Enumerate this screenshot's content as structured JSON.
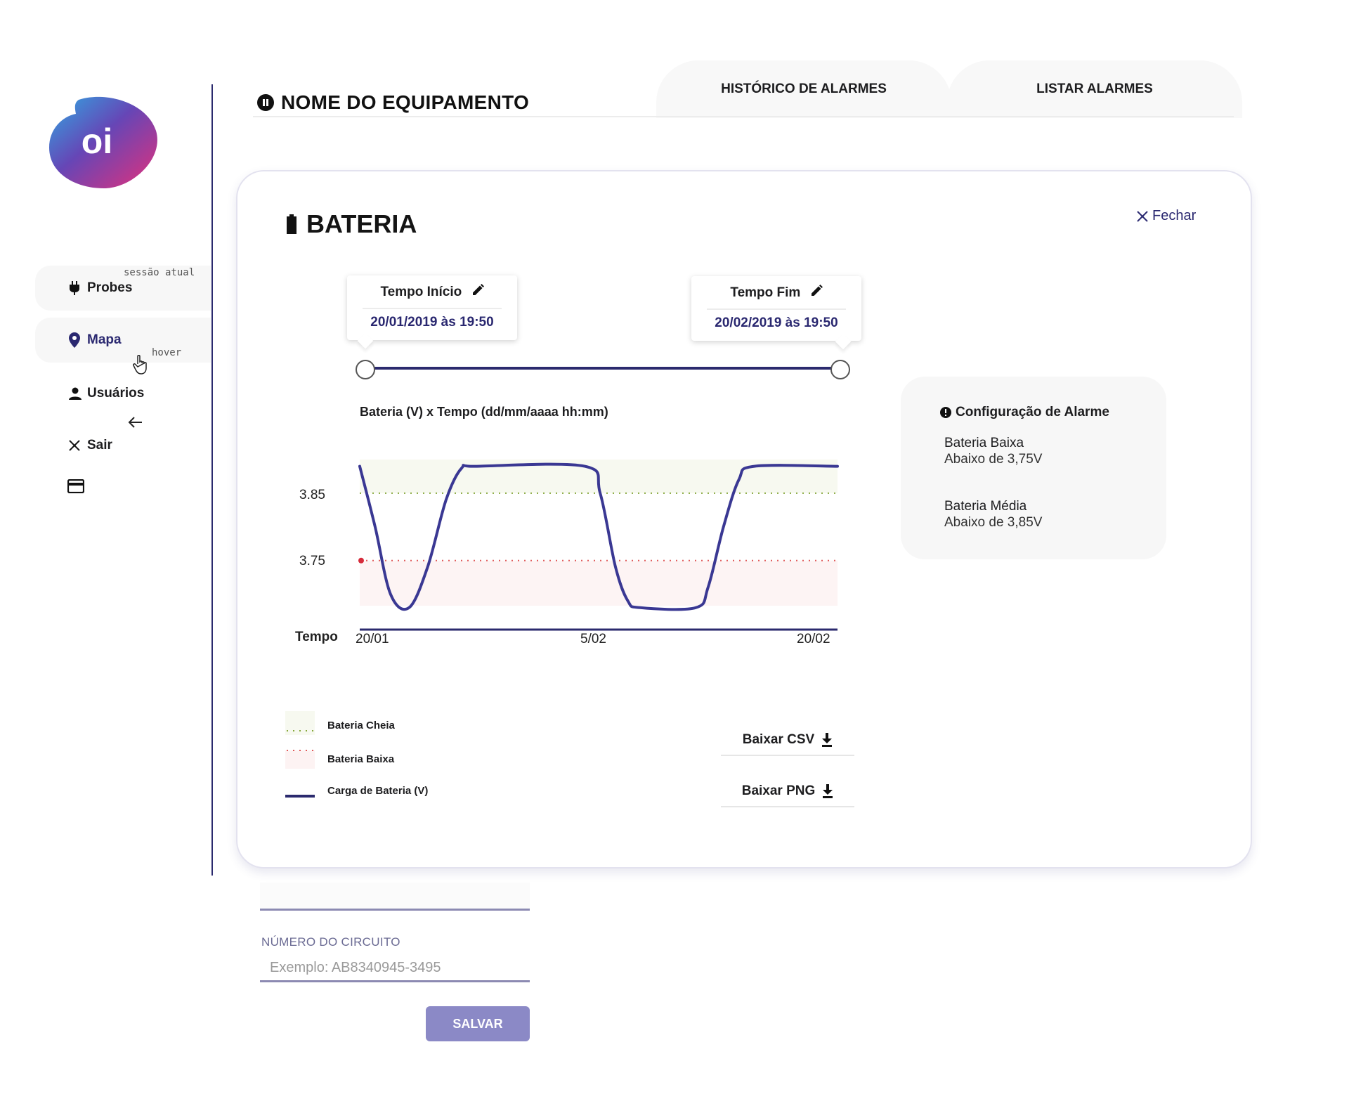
{
  "app": {
    "logo_text": "oi",
    "page_title": "NOME DO EQUIPAMENTO"
  },
  "tabs": [
    {
      "label": "HISTÓRICO DE ALARMES"
    },
    {
      "label": "LISTAR ALARMES"
    }
  ],
  "sidebar": {
    "items": [
      {
        "label": "Probes",
        "icon": "plug-icon",
        "note": "sessão atual"
      },
      {
        "label": "Mapa",
        "icon": "map-pin-icon",
        "note": "hover"
      },
      {
        "label": "Usuários",
        "icon": "user-icon"
      },
      {
        "label": "Sair",
        "icon": "close-icon"
      }
    ]
  },
  "card": {
    "title": "BATERIA",
    "close_label": "Fechar"
  },
  "time_range": {
    "start_label": "Tempo Início",
    "start_value": "20/01/2019 às 19:50",
    "end_label": "Tempo Fim",
    "end_value": "20/02/2019 às 19:50"
  },
  "chart_data": {
    "type": "line",
    "title": "Bateria (V) x Tempo (dd/mm/aaaa hh:mm)",
    "xlabel": "Tempo",
    "ylabel": "",
    "x_ticks": [
      "20/01",
      "5/02",
      "20/02"
    ],
    "y_ticks": [
      "3.85",
      "3.75"
    ],
    "ylim": [
      3.66,
      3.9
    ],
    "xlim": [
      0,
      31
    ],
    "thresholds": [
      {
        "name": "Bateria Cheia",
        "value": 3.85,
        "color": "#86a83a"
      },
      {
        "name": "Bateria Baixa",
        "value": 3.75,
        "color": "#e05a5a"
      }
    ],
    "series": [
      {
        "name": "Carga de Bateria (V)",
        "color": "#3a3893",
        "points": [
          [
            0,
            3.89
          ],
          [
            1.0,
            3.8
          ],
          [
            2.0,
            3.7
          ],
          [
            3.2,
            3.68
          ],
          [
            4.4,
            3.74
          ],
          [
            5.6,
            3.84
          ],
          [
            6.6,
            3.887
          ],
          [
            7.6,
            3.89
          ],
          [
            14.6,
            3.89
          ],
          [
            15.6,
            3.85
          ],
          [
            16.6,
            3.74
          ],
          [
            17.4,
            3.69
          ],
          [
            18.2,
            3.68
          ],
          [
            21.8,
            3.68
          ],
          [
            22.6,
            3.71
          ],
          [
            23.6,
            3.8
          ],
          [
            24.6,
            3.87
          ],
          [
            25.6,
            3.89
          ],
          [
            31,
            3.89
          ]
        ]
      }
    ],
    "grid": false,
    "legend_position": "bottom-left"
  },
  "legend": [
    {
      "label": "Bateria Cheia"
    },
    {
      "label": "Bateria Baixa"
    },
    {
      "label": "Carga de Bateria (V)"
    }
  ],
  "downloads": {
    "csv_label": "Baixar CSV",
    "png_label": "Baixar PNG"
  },
  "alarm_config": {
    "title": "Configuração de Alarme",
    "items": [
      {
        "name": "Bateria Baixa",
        "value": "Abaixo de 3,75V"
      },
      {
        "name": "Bateria Média",
        "value": "Abaixo de 3,85V"
      }
    ]
  },
  "form": {
    "circuit_label": "NÚMERO DO CIRCUITO",
    "circuit_placeholder": "Exemplo: AB8340945-3495",
    "save_label": "SALVAR"
  },
  "colors": {
    "primary": "#2b2a6e",
    "accent": "#3a3893",
    "button": "#8b89c6"
  }
}
